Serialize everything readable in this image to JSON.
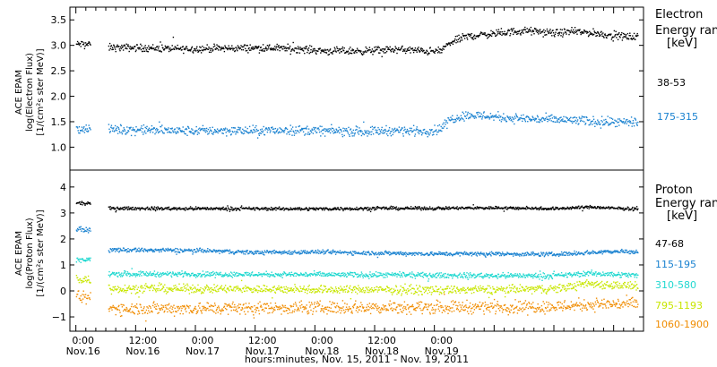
{
  "chart_data": [
    {
      "type": "scatter",
      "panel": "electron",
      "ylabel": [
        "ACE EPAM",
        "log(Electron Flux)",
        "[1/(cm²s ster MeV)]"
      ],
      "ylim": [
        0.55,
        3.75
      ],
      "yticks": [
        1.0,
        1.5,
        2.0,
        2.5,
        3.0,
        3.5
      ],
      "ytick_labels": [
        "1.0",
        "1.5",
        "2.0",
        "2.5",
        "3.0",
        "3.5"
      ],
      "legend_title": [
        "Electron",
        "Energy ran",
        "[keV]"
      ],
      "series": [
        {
          "name": "38-53",
          "color": "#000000",
          "x": [
            0.0,
            0.06,
            0.12,
            0.27,
            0.6,
            0.9,
            1.2,
            1.5,
            1.8,
            2.1,
            2.4,
            2.65,
            2.8,
            2.9,
            3.0,
            3.05,
            3.12,
            3.25,
            3.4,
            3.55,
            3.65,
            3.75,
            3.85,
            4.0,
            4.15,
            4.3,
            4.5,
            4.7
          ],
          "y": [
            3.03,
            3.04,
            3.02,
            2.97,
            2.96,
            2.94,
            2.95,
            2.96,
            2.95,
            2.9,
            2.9,
            2.93,
            2.92,
            2.9,
            2.89,
            2.91,
            3.05,
            3.18,
            3.22,
            3.25,
            3.28,
            3.3,
            3.28,
            3.25,
            3.28,
            3.26,
            3.2,
            3.17
          ],
          "noise": 0.035
        },
        {
          "name": "175-315",
          "color": "#1a82d0",
          "x": [
            0.0,
            0.06,
            0.12,
            0.27,
            0.6,
            0.9,
            1.2,
            1.5,
            1.8,
            2.1,
            2.4,
            2.65,
            2.8,
            2.9,
            3.0,
            3.05,
            3.12,
            3.25,
            3.4,
            3.55,
            3.65,
            3.75,
            3.85,
            4.0,
            4.15,
            4.3,
            4.5,
            4.7
          ],
          "y": [
            1.37,
            1.37,
            1.38,
            1.36,
            1.35,
            1.33,
            1.34,
            1.33,
            1.35,
            1.33,
            1.32,
            1.34,
            1.33,
            1.33,
            1.34,
            1.38,
            1.55,
            1.64,
            1.63,
            1.6,
            1.58,
            1.57,
            1.56,
            1.55,
            1.54,
            1.52,
            1.5,
            1.48
          ],
          "noise": 0.045
        }
      ]
    },
    {
      "type": "scatter",
      "panel": "proton",
      "xlabel": "hours:minutes, Nov. 15, 2011 - Nov. 19, 2011",
      "ylabel": [
        "ACE EPAM",
        "log(Proton Flux)",
        "[1/(cm²s ster MeV)]"
      ],
      "ylim": [
        -1.55,
        4.65
      ],
      "yticks": [
        -1,
        0,
        1,
        2,
        3,
        4
      ],
      "ytick_labels": [
        "−1",
        "0",
        "1",
        "2",
        "3",
        "4"
      ],
      "legend_title": [
        "Proton",
        "Energy ran",
        "[keV]"
      ],
      "series": [
        {
          "name": "47-68",
          "color": "#000000",
          "x": [
            0.0,
            0.12,
            0.27,
            1.0,
            2.0,
            2.5,
            3.0,
            3.5,
            4.0,
            4.3,
            4.5,
            4.7
          ],
          "y": [
            3.4,
            3.38,
            3.2,
            3.19,
            3.18,
            3.2,
            3.2,
            3.22,
            3.19,
            3.25,
            3.2,
            3.18
          ],
          "noise": 0.03
        },
        {
          "name": "115-195",
          "color": "#1a82d0",
          "x": [
            0.0,
            0.12,
            0.27,
            1.0,
            1.5,
            2.0,
            2.5,
            3.0,
            3.5,
            4.0,
            4.3,
            4.5,
            4.7
          ],
          "y": [
            2.4,
            2.35,
            1.6,
            1.58,
            1.5,
            1.52,
            1.48,
            1.45,
            1.45,
            1.43,
            1.5,
            1.55,
            1.52
          ],
          "noise": 0.04
        },
        {
          "name": "310-580",
          "color": "#20d8d0",
          "x": [
            0.0,
            0.12,
            0.27,
            1.0,
            2.0,
            3.0,
            4.0,
            4.3,
            4.7
          ],
          "y": [
            1.25,
            1.2,
            0.68,
            0.67,
            0.65,
            0.62,
            0.6,
            0.7,
            0.62
          ],
          "noise": 0.05
        },
        {
          "name": "795-1193",
          "color": "#c8e600",
          "x": [
            0.0,
            0.12,
            0.27,
            1.0,
            2.0,
            3.0,
            4.0,
            4.3,
            4.7
          ],
          "y": [
            0.5,
            0.45,
            0.12,
            0.1,
            0.08,
            0.05,
            0.1,
            0.3,
            0.2
          ],
          "noise": 0.08
        },
        {
          "name": "1060-1900",
          "color": "#f08c00",
          "x": [
            0.0,
            0.12,
            0.27,
            1.0,
            2.0,
            3.0,
            4.0,
            4.3,
            4.7
          ],
          "y": [
            -0.25,
            -0.25,
            -0.65,
            -0.65,
            -0.62,
            -0.6,
            -0.58,
            -0.5,
            -0.48
          ],
          "noise": 0.12
        }
      ]
    }
  ],
  "x_axis": {
    "ticks": [
      {
        "time": "0:00",
        "date": "Nov.16"
      },
      {
        "time": "12:00",
        "date": "Nov.16"
      },
      {
        "time": "0:00",
        "date": "Nov.17"
      },
      {
        "time": "12:00",
        "date": "Nov.17"
      },
      {
        "time": "0:00",
        "date": "Nov.18"
      },
      {
        "time": "12:00",
        "date": "Nov.18"
      },
      {
        "time": "0:00",
        "date": "Nov.19"
      }
    ]
  },
  "gaps": [
    [
      0.12,
      0.27
    ]
  ]
}
